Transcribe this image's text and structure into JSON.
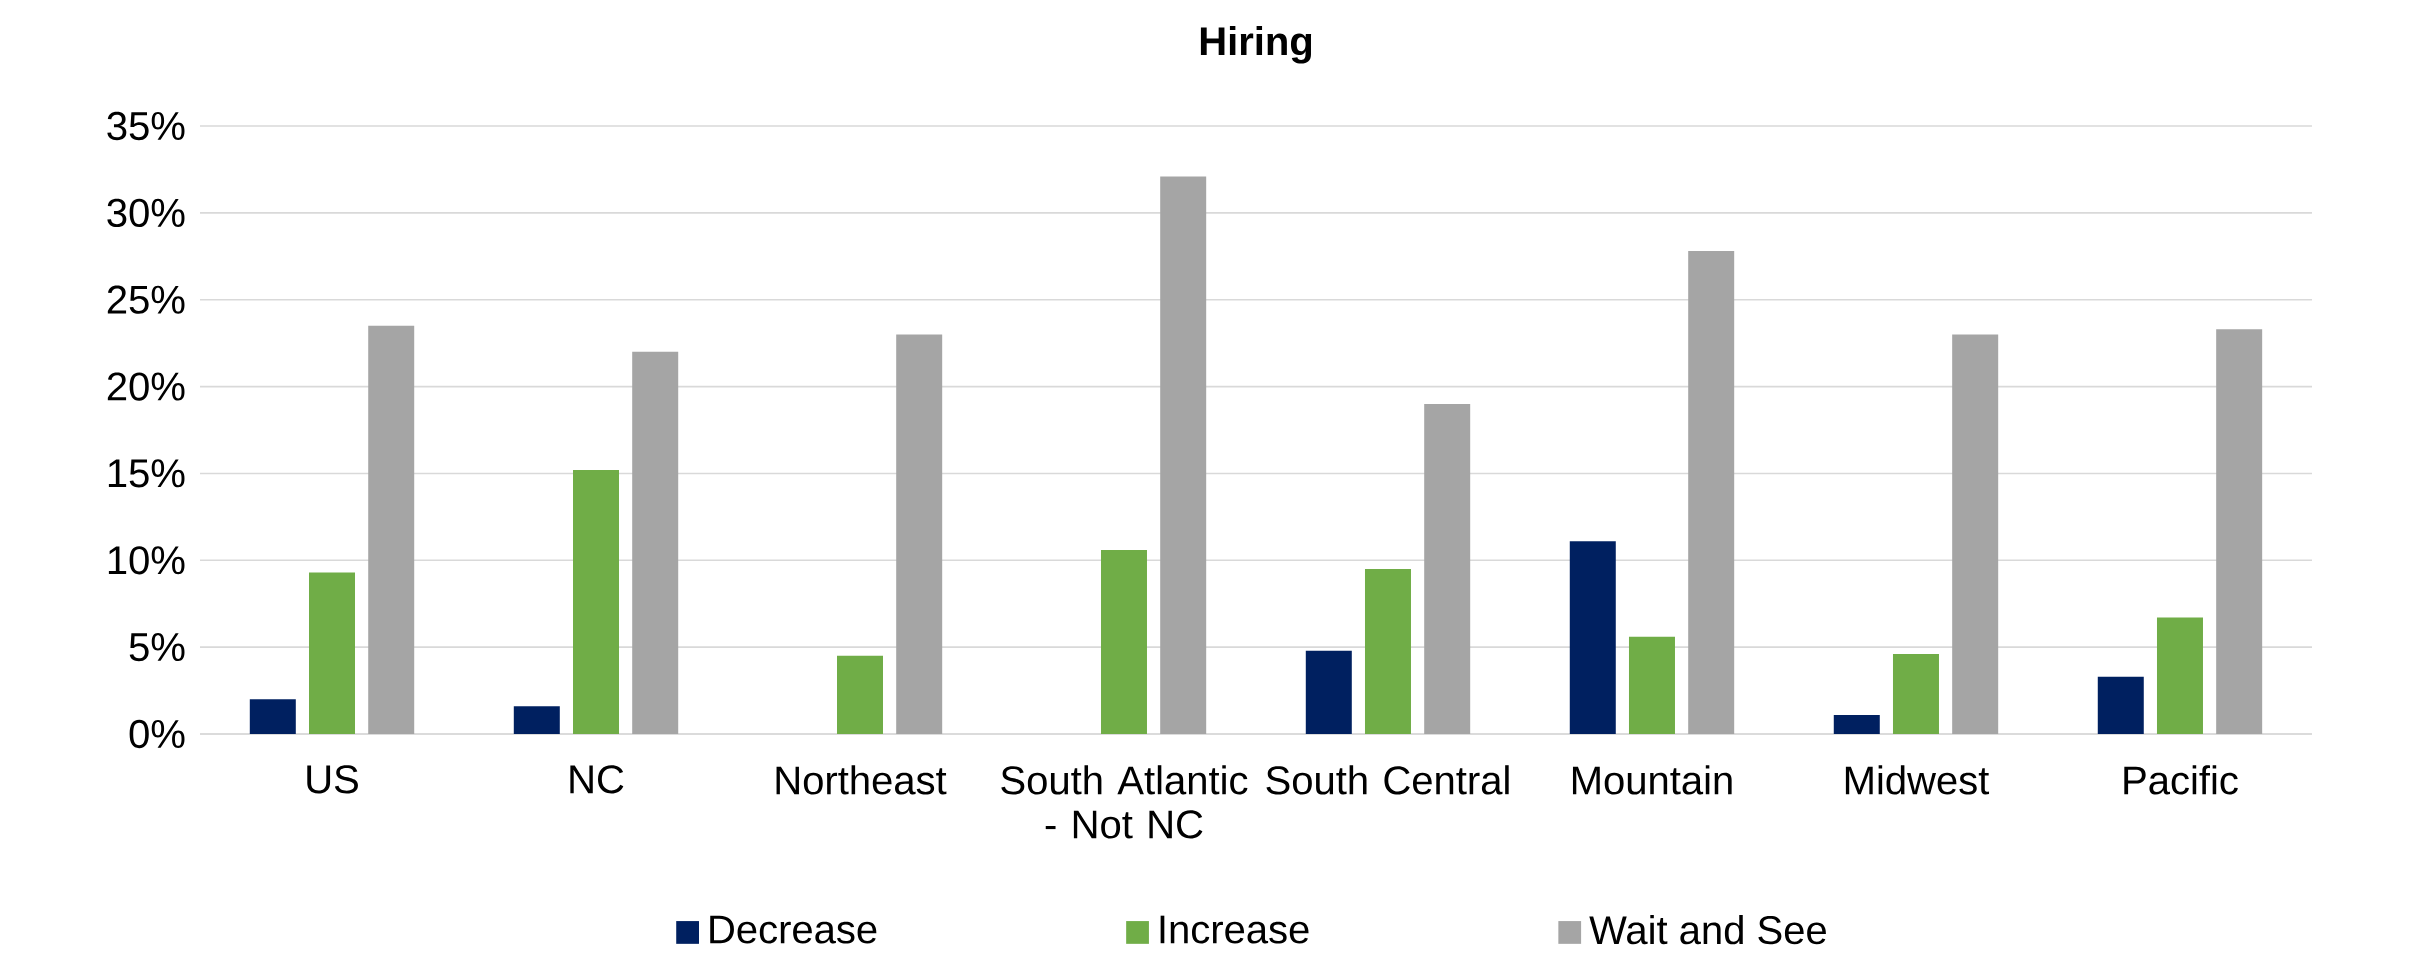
{
  "chart_data": {
    "type": "bar",
    "title": "Hiring",
    "categories": [
      "US",
      "NC",
      "Northeast",
      "South Atlantic - Not NC",
      "South Central",
      "Mountain",
      "Midwest",
      "Pacific"
    ],
    "series": [
      {
        "name": "Decrease",
        "color": "#002060",
        "values": [
          2.0,
          1.6,
          0,
          0,
          4.8,
          11.1,
          1.1,
          3.3
        ]
      },
      {
        "name": "Increase",
        "color": "#70ad47",
        "values": [
          9.3,
          15.2,
          4.5,
          10.6,
          9.5,
          5.6,
          4.6,
          6.7
        ]
      },
      {
        "name": "Wait and See",
        "color": "#a5a5a5",
        "values": [
          23.5,
          22.0,
          23.0,
          32.1,
          19.0,
          27.8,
          23.0,
          23.3
        ]
      }
    ],
    "ylim": [
      0,
      35
    ],
    "yticks": [
      {
        "value": 0,
        "label": "0%"
      },
      {
        "value": 5,
        "label": "5%"
      },
      {
        "value": 10,
        "label": "10%"
      },
      {
        "value": 15,
        "label": "15%"
      },
      {
        "value": 20,
        "label": "20%"
      },
      {
        "value": 25,
        "label": "25%"
      },
      {
        "value": 30,
        "label": "30%"
      },
      {
        "value": 35,
        "label": "35%"
      }
    ],
    "grid": "y",
    "legend": "bottom"
  }
}
